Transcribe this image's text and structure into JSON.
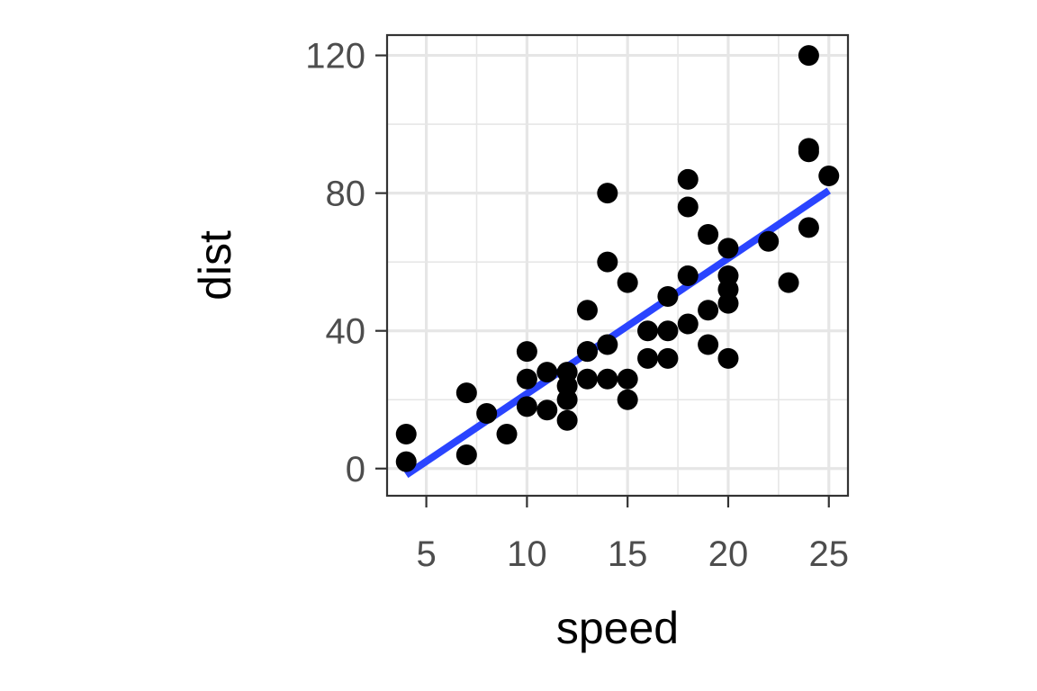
{
  "chart_data": {
    "type": "scatter",
    "xlabel": "speed",
    "ylabel": "dist",
    "xlim": [
      3.05,
      25.95
    ],
    "ylim": [
      -7.9,
      125.9
    ],
    "x_ticks": [
      5,
      10,
      15,
      20,
      25
    ],
    "y_ticks": [
      0,
      40,
      80,
      120
    ],
    "x_minor_ticks": [
      7.5,
      12.5,
      17.5,
      22.5
    ],
    "y_minor_ticks": [
      20,
      60,
      100
    ],
    "grid": true,
    "points": [
      [
        4,
        2
      ],
      [
        4,
        10
      ],
      [
        7,
        4
      ],
      [
        7,
        22
      ],
      [
        8,
        16
      ],
      [
        9,
        10
      ],
      [
        10,
        18
      ],
      [
        10,
        26
      ],
      [
        10,
        34
      ],
      [
        11,
        17
      ],
      [
        11,
        28
      ],
      [
        12,
        14
      ],
      [
        12,
        20
      ],
      [
        12,
        24
      ],
      [
        12,
        28
      ],
      [
        13,
        26
      ],
      [
        13,
        34
      ],
      [
        13,
        34
      ],
      [
        13,
        46
      ],
      [
        14,
        26
      ],
      [
        14,
        36
      ],
      [
        14,
        60
      ],
      [
        14,
        80
      ],
      [
        15,
        20
      ],
      [
        15,
        26
      ],
      [
        15,
        54
      ],
      [
        16,
        32
      ],
      [
        16,
        40
      ],
      [
        17,
        32
      ],
      [
        17,
        40
      ],
      [
        17,
        50
      ],
      [
        18,
        42
      ],
      [
        18,
        56
      ],
      [
        18,
        76
      ],
      [
        18,
        84
      ],
      [
        19,
        36
      ],
      [
        19,
        46
      ],
      [
        19,
        68
      ],
      [
        20,
        32
      ],
      [
        20,
        48
      ],
      [
        20,
        52
      ],
      [
        20,
        56
      ],
      [
        20,
        64
      ],
      [
        22,
        66
      ],
      [
        23,
        54
      ],
      [
        24,
        70
      ],
      [
        24,
        92
      ],
      [
        24,
        93
      ],
      [
        24,
        120
      ],
      [
        25,
        85
      ]
    ],
    "fit_line": {
      "x": [
        4,
        25
      ],
      "y": [
        -1.85,
        80.73
      ]
    },
    "colors": {
      "points": "#000000",
      "fit": "#2a44ff",
      "grid": "#e6e6e6",
      "border": "#333333"
    }
  }
}
